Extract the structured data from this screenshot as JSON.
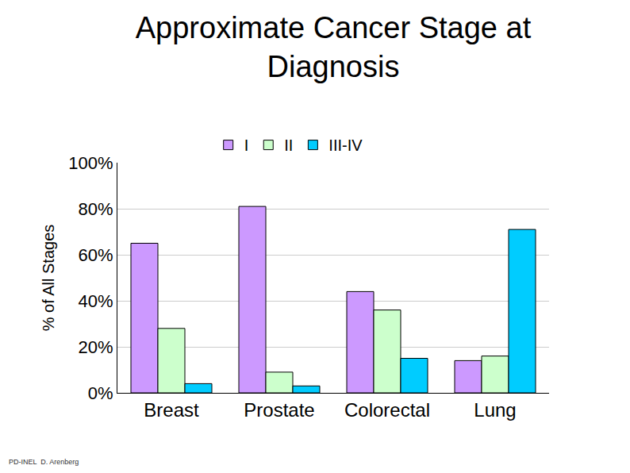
{
  "chart_data": {
    "type": "bar",
    "title": "Approximate Cancer Stage at Diagnosis",
    "y_label": "% of All Stages",
    "categories": [
      "Breast",
      "Prostate",
      "Colorectal",
      "Lung"
    ],
    "series": [
      {
        "name": "I",
        "color": "#cc99ff",
        "values": [
          65,
          81,
          44,
          14
        ]
      },
      {
        "name": "II",
        "color": "#ccffcc",
        "values": [
          28,
          9,
          36,
          16
        ]
      },
      {
        "name": "III-IV",
        "color": "#00ccff",
        "values": [
          4,
          3,
          15,
          71
        ]
      }
    ],
    "ylim": [
      0,
      100
    ],
    "yticks": [
      {
        "value": 0,
        "label": "0%"
      },
      {
        "value": 20,
        "label": "20%"
      },
      {
        "value": 40,
        "label": "40%"
      },
      {
        "value": 60,
        "label": "60%"
      },
      {
        "value": 80,
        "label": "80%"
      },
      {
        "value": 100,
        "label": "100%"
      }
    ],
    "grid": true,
    "legend": "top",
    "annotations": [
      "PD-INEL",
      "D. Arenberg"
    ]
  }
}
